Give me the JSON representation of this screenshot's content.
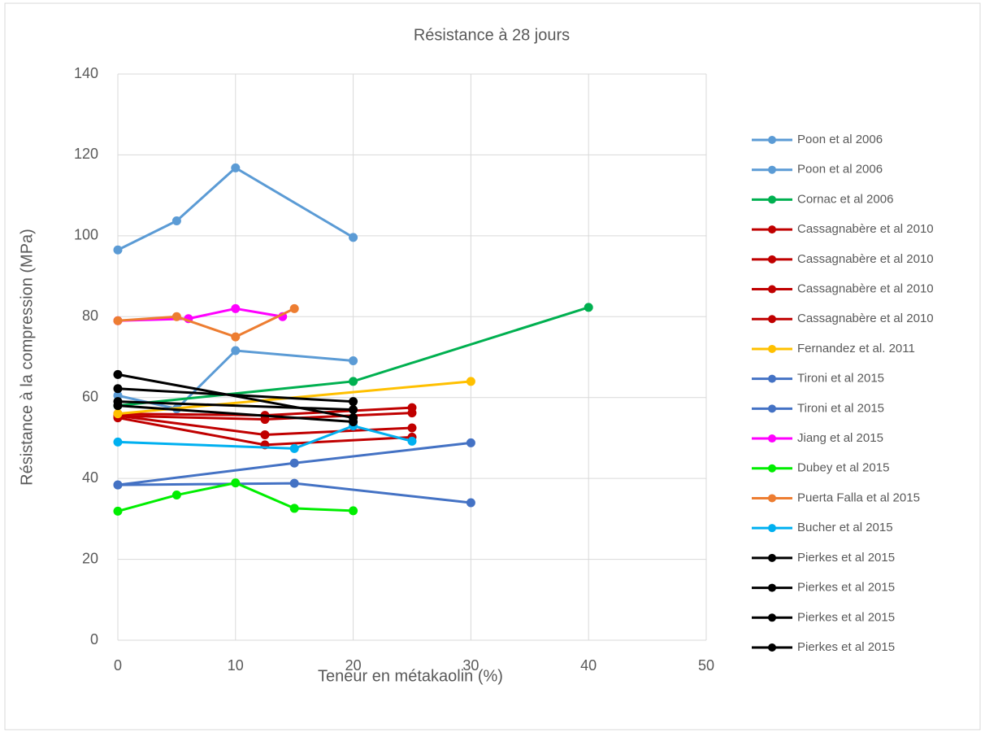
{
  "chart_data": {
    "type": "line",
    "title": "Résistance à 28 jours",
    "x_label": "Teneur en métakaolin (%)",
    "y_label": "Résistance à la compression (MPa)",
    "xlim": [
      0,
      50
    ],
    "xticks": [
      0,
      10,
      20,
      30,
      40,
      50
    ],
    "ylim": [
      0,
      140
    ],
    "yticks": [
      0,
      20,
      40,
      60,
      80,
      100,
      120,
      140
    ],
    "grid": true,
    "legend": "right",
    "series": [
      {
        "name": "Poon et al 2006",
        "color": "#5b9bd5",
        "x": [
          0,
          5,
          10,
          20
        ],
        "values": [
          96.5,
          103.7,
          116.8,
          99.6
        ]
      },
      {
        "name": "Poon et al 2006",
        "color": "#5b9bd5",
        "x": [
          0,
          5,
          10,
          20
        ],
        "values": [
          60.5,
          57.2,
          71.6,
          69.1
        ]
      },
      {
        "name": "Cornac et al 2006",
        "color": "#00b050",
        "x": [
          0,
          20,
          40
        ],
        "values": [
          58,
          64,
          82.3
        ]
      },
      {
        "name": "Cassagnabère et al 2010",
        "color": "#c00000",
        "x": [
          0,
          12.5,
          25
        ],
        "values": [
          56,
          55.6,
          57.5
        ]
      },
      {
        "name": "Cassagnabère et al 2010",
        "color": "#c00000",
        "x": [
          0,
          12.5,
          25
        ],
        "values": [
          55.5,
          54.6,
          56.2
        ]
      },
      {
        "name": "Cassagnabère et al 2010",
        "color": "#c00000",
        "x": [
          0,
          12.5,
          25
        ],
        "values": [
          55.5,
          50.8,
          52.5
        ]
      },
      {
        "name": "Cassagnabère et al 2010",
        "color": "#c00000",
        "x": [
          0,
          12.5,
          25
        ],
        "values": [
          55,
          48.3,
          50.2
        ]
      },
      {
        "name": "Fernandez et al. 2011",
        "color": "#ffc000",
        "x": [
          0,
          30
        ],
        "values": [
          56,
          64
        ]
      },
      {
        "name": "Tironi et al 2015",
        "color": "#4472c4",
        "x": [
          0,
          15,
          30
        ],
        "values": [
          38.4,
          43.8,
          48.8
        ]
      },
      {
        "name": "Tironi et al 2015",
        "color": "#4472c4",
        "x": [
          0,
          15,
          30
        ],
        "values": [
          38.4,
          38.8,
          34
        ]
      },
      {
        "name": "Jiang et al 2015",
        "color": "#ff00ff",
        "x": [
          0,
          6,
          10,
          14
        ],
        "values": [
          79,
          79.5,
          82,
          80
        ]
      },
      {
        "name": "Dubey et al 2015",
        "color": "#00ee00",
        "x": [
          0,
          5,
          10,
          15,
          20
        ],
        "values": [
          31.9,
          35.9,
          38.9,
          32.6,
          32
        ]
      },
      {
        "name": "Puerta Falla et al 2015",
        "color": "#ed7d31",
        "x": [
          0,
          5,
          10,
          15
        ],
        "values": [
          79,
          80,
          75,
          82
        ]
      },
      {
        "name": "Bucher et al 2015",
        "color": "#00b0f0",
        "x": [
          0,
          15,
          20,
          25
        ],
        "values": [
          49,
          47.4,
          53,
          49.2
        ]
      },
      {
        "name": "Pierkes et al 2015",
        "color": "#000000",
        "x": [
          0,
          20
        ],
        "values": [
          65.7,
          55
        ]
      },
      {
        "name": "Pierkes et al 2015",
        "color": "#000000",
        "x": [
          0,
          20
        ],
        "values": [
          62.2,
          59
        ]
      },
      {
        "name": "Pierkes et al 2015",
        "color": "#000000",
        "x": [
          0,
          20
        ],
        "values": [
          59,
          57
        ]
      },
      {
        "name": "Pierkes et al 2015",
        "color": "#000000",
        "x": [
          0,
          20
        ],
        "values": [
          58,
          54
        ]
      }
    ]
  }
}
